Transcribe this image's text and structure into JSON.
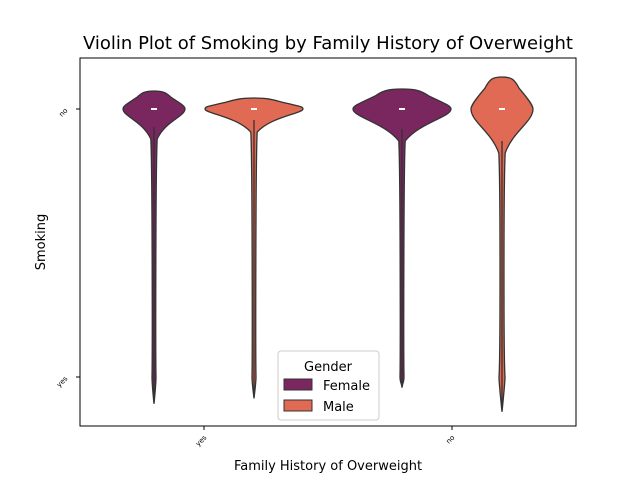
{
  "chart_data": {
    "type": "violin",
    "title": "Violin Plot of Smoking by Family History of Overweight",
    "xlabel": "Family History of Overweight",
    "ylabel": "Smoking",
    "categories": [
      "yes",
      "no"
    ],
    "y_categories": [
      "no",
      "yes"
    ],
    "legend": {
      "title": "Gender",
      "placement": "lower-center",
      "entries": [
        "Female",
        "Male"
      ]
    },
    "series": [
      {
        "name": "Female",
        "color": "#7a2760",
        "violins": [
          {
            "category": "yes",
            "y_min": -0.1,
            "y_max": 1.06,
            "mode": 0.0,
            "median": 0.0
          },
          {
            "category": "no",
            "y_min": -0.04,
            "y_max": 1.04,
            "mode": 0.0,
            "median": 0.0
          }
        ]
      },
      {
        "name": "Male",
        "color": "#e06a53",
        "violins": [
          {
            "category": "yes",
            "y_min": -0.08,
            "y_max": 1.08,
            "mode": 0.0,
            "median": 0.0
          },
          {
            "category": "no",
            "y_min": -0.13,
            "y_max": 1.13,
            "mode": 0.0,
            "median": 0.0
          }
        ]
      }
    ],
    "ylim": [
      -0.18,
      1.18
    ],
    "grid": false
  }
}
